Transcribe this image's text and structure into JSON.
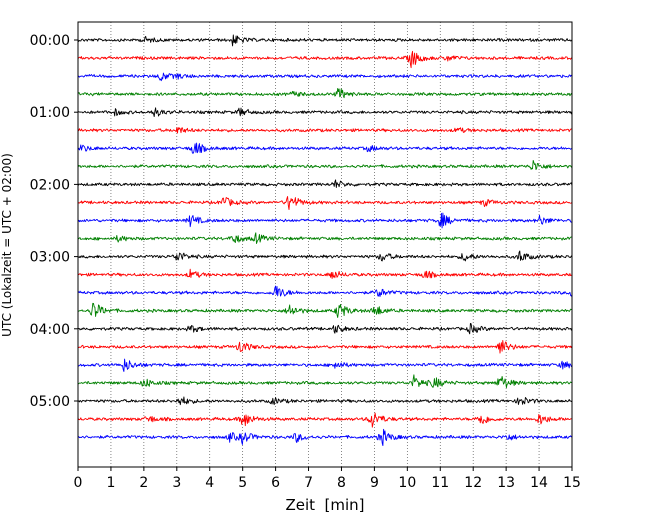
{
  "chart_data": {
    "type": "line",
    "title": "",
    "xlabel": "Zeit  [min]",
    "ylabel": "UTC (Lokalzeit = UTC + 02:00)",
    "xlim": [
      0,
      15
    ],
    "x_ticks": [
      0,
      1,
      2,
      3,
      4,
      5,
      6,
      7,
      8,
      9,
      10,
      11,
      12,
      13,
      14,
      15
    ],
    "x_tick_labels": [
      "0",
      "1",
      "2",
      "3",
      "4",
      "5",
      "6",
      "7",
      "8",
      "9",
      "10",
      "11",
      "12",
      "13",
      "14",
      "15"
    ],
    "y_tick_labels": [
      "00:00",
      "01:00",
      "02:00",
      "03:00",
      "04:00",
      "05:00"
    ],
    "y_tick_rows": [
      0,
      4,
      8,
      12,
      16,
      20
    ],
    "row_interval_min": 15,
    "grid": "vertical dotted at each minute",
    "trace_colors": [
      "#000000",
      "#ff0000",
      "#0000ff",
      "#008000"
    ],
    "rows": [
      {
        "start": "00:00",
        "events": [
          [
            2.0,
            0.3
          ],
          [
            4.7,
            0.55
          ]
        ]
      },
      {
        "start": "00:15",
        "events": [
          [
            10.1,
            1.0
          ],
          [
            11.2,
            0.3
          ]
        ]
      },
      {
        "start": "00:30",
        "events": [
          [
            2.5,
            0.45
          ],
          [
            3.0,
            0.2
          ]
        ]
      },
      {
        "start": "00:45",
        "events": [
          [
            6.5,
            0.25
          ],
          [
            7.9,
            0.6
          ]
        ]
      },
      {
        "start": "01:00",
        "events": [
          [
            1.1,
            0.3
          ],
          [
            2.3,
            0.45
          ],
          [
            4.9,
            0.4
          ]
        ]
      },
      {
        "start": "01:15",
        "events": [
          [
            3.0,
            0.35
          ],
          [
            11.5,
            0.25
          ]
        ]
      },
      {
        "start": "01:30",
        "events": [
          [
            0.1,
            0.35
          ],
          [
            3.5,
            0.8
          ],
          [
            8.8,
            0.3
          ]
        ]
      },
      {
        "start": "01:45",
        "events": [
          [
            13.8,
            0.6
          ]
        ]
      },
      {
        "start": "02:00",
        "events": [
          [
            7.8,
            0.4
          ]
        ]
      },
      {
        "start": "02:15",
        "events": [
          [
            4.4,
            0.6
          ],
          [
            6.4,
            1.0
          ],
          [
            12.3,
            0.35
          ]
        ]
      },
      {
        "start": "02:30",
        "events": [
          [
            3.4,
            0.6
          ],
          [
            11.0,
            0.85
          ],
          [
            14.0,
            0.5
          ]
        ]
      },
      {
        "start": "02:45",
        "events": [
          [
            1.2,
            0.3
          ],
          [
            4.7,
            0.5
          ],
          [
            5.4,
            0.45
          ]
        ]
      },
      {
        "start": "03:00",
        "events": [
          [
            3.0,
            0.6
          ],
          [
            9.2,
            0.5
          ],
          [
            11.7,
            0.5
          ],
          [
            13.4,
            0.6
          ]
        ]
      },
      {
        "start": "03:15",
        "events": [
          [
            3.4,
            0.45
          ],
          [
            7.7,
            0.5
          ],
          [
            10.5,
            0.45
          ]
        ]
      },
      {
        "start": "03:30",
        "events": [
          [
            6.0,
            0.8
          ],
          [
            9.1,
            0.5
          ],
          [
            15.0,
            0.5
          ]
        ]
      },
      {
        "start": "03:45",
        "events": [
          [
            0.45,
            1.0
          ],
          [
            6.4,
            0.7
          ],
          [
            7.9,
            0.9
          ],
          [
            9.0,
            0.6
          ]
        ]
      },
      {
        "start": "04:00",
        "events": [
          [
            3.4,
            0.4
          ],
          [
            7.8,
            0.45
          ],
          [
            11.9,
            0.5
          ]
        ]
      },
      {
        "start": "04:15",
        "events": [
          [
            4.9,
            0.7
          ],
          [
            12.8,
            0.9
          ]
        ]
      },
      {
        "start": "04:30",
        "events": [
          [
            1.4,
            0.7
          ],
          [
            7.8,
            0.4
          ],
          [
            14.7,
            0.4
          ]
        ]
      },
      {
        "start": "04:45",
        "events": [
          [
            2.0,
            0.5
          ],
          [
            10.2,
            0.7
          ],
          [
            10.8,
            0.55
          ],
          [
            12.8,
            0.9
          ]
        ]
      },
      {
        "start": "05:00",
        "events": [
          [
            3.1,
            0.5
          ],
          [
            5.9,
            0.35
          ],
          [
            13.4,
            0.55
          ]
        ]
      },
      {
        "start": "05:15",
        "events": [
          [
            2.1,
            0.4
          ],
          [
            5.0,
            0.9
          ],
          [
            8.9,
            1.0
          ],
          [
            12.2,
            0.7
          ],
          [
            14.0,
            0.6
          ]
        ]
      },
      {
        "start": "05:30",
        "events": [
          [
            4.6,
            0.45
          ],
          [
            5.0,
            0.6
          ],
          [
            6.6,
            0.5
          ],
          [
            9.2,
            0.9
          ],
          [
            13.0,
            0.35
          ]
        ]
      }
    ]
  }
}
